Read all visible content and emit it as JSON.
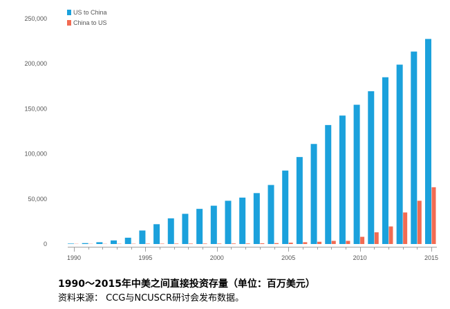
{
  "chart_data": {
    "type": "bar",
    "x": [
      1990,
      1991,
      1992,
      1993,
      1994,
      1995,
      1996,
      1997,
      1998,
      1999,
      2000,
      2001,
      2002,
      2003,
      2004,
      2005,
      2006,
      2007,
      2008,
      2009,
      2010,
      2011,
      2012,
      2013,
      2014,
      2015
    ],
    "x_tick_labels": [
      "1990",
      "1995",
      "2000",
      "2005",
      "2010",
      "2015"
    ],
    "series": [
      {
        "name": "US to China",
        "color": "#1ba1dc",
        "values": [
          500,
          1000,
          2000,
          4000,
          7000,
          15000,
          22000,
          28500,
          33500,
          39000,
          42500,
          48000,
          51500,
          56500,
          65500,
          81500,
          96500,
          111000,
          132000,
          142500,
          154500,
          169500,
          185000,
          199000,
          213500,
          227500
        ]
      },
      {
        "name": "China to US",
        "color": "#f26b52",
        "values": [
          200,
          200,
          200,
          300,
          300,
          400,
          400,
          500,
          500,
          500,
          500,
          600,
          600,
          800,
          1000,
          1500,
          2000,
          2500,
          3500,
          3500,
          8000,
          13000,
          19500,
          35000,
          48000,
          63000
        ]
      }
    ],
    "y_ticks": [
      "0",
      "50,000",
      "100,000",
      "150,000",
      "200,000",
      "250,000"
    ],
    "ylim": [
      0,
      250000
    ],
    "title": "",
    "xlabel": "",
    "ylabel": "",
    "legend_position": "top-left"
  },
  "caption": {
    "title": "1990～2015年中美之间直接投资存量（单位：百万美元）",
    "source": "资料来源： CCG与NCUSCR研讨会发布数据。"
  }
}
